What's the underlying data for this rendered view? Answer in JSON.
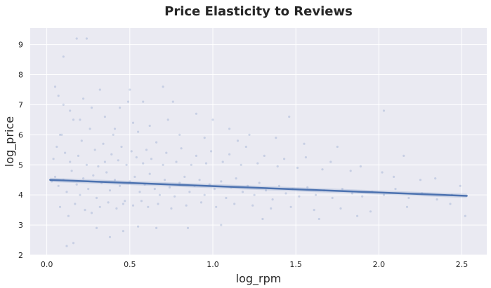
{
  "chart_data": {
    "type": "scatter",
    "title": "Price Elasticity to Reviews",
    "xlabel": "log_rpm",
    "ylabel": "log_price",
    "xlim": [
      -0.1,
      2.65
    ],
    "ylim": [
      2.0,
      9.55
    ],
    "xticks": [
      0.0,
      0.5,
      1.0,
      1.5,
      2.0,
      2.5
    ],
    "xtick_labels": [
      "0.0",
      "0.5",
      "1.0",
      "1.5",
      "2.0",
      "2.5"
    ],
    "yticks": [
      2,
      3,
      4,
      5,
      6,
      7,
      8,
      9
    ],
    "ytick_labels": [
      "2",
      "3",
      "4",
      "5",
      "6",
      "7",
      "8",
      "9"
    ],
    "grid": true,
    "background": "#eaeaf2",
    "point_color": "#4c72b0",
    "line_color": "#4c72b0",
    "regression_line": {
      "x": [
        0.02,
        2.53
      ],
      "y": [
        4.5,
        3.97
      ]
    },
    "series": [
      {
        "points": [
          [
            0.03,
            4.45
          ],
          [
            0.05,
            4.6
          ],
          [
            0.07,
            4.3
          ],
          [
            0.1,
            4.5
          ],
          [
            0.12,
            4.1
          ],
          [
            0.15,
            4.8
          ],
          [
            0.18,
            4.35
          ],
          [
            0.2,
            4.0
          ],
          [
            0.22,
            4.55
          ],
          [
            0.25,
            4.2
          ],
          [
            0.28,
            4.65
          ],
          [
            0.3,
            3.9
          ],
          [
            0.33,
            4.4
          ],
          [
            0.36,
            4.75
          ],
          [
            0.38,
            4.15
          ],
          [
            0.41,
            4.5
          ],
          [
            0.44,
            4.3
          ],
          [
            0.47,
            3.8
          ],
          [
            0.5,
            4.45
          ],
          [
            0.53,
            4.6
          ],
          [
            0.56,
            4.1
          ],
          [
            0.59,
            4.35
          ],
          [
            0.62,
            4.7
          ],
          [
            0.65,
            4.2
          ],
          [
            0.68,
            4.0
          ],
          [
            0.71,
            4.5
          ],
          [
            0.74,
            4.25
          ],
          [
            0.77,
            3.95
          ],
          [
            0.8,
            4.4
          ],
          [
            0.83,
            4.6
          ],
          [
            0.86,
            4.1
          ],
          [
            0.89,
            4.3
          ],
          [
            0.92,
            4.5
          ],
          [
            0.95,
            4.0
          ],
          [
            0.98,
            4.35
          ],
          [
            1.01,
            4.2
          ],
          [
            1.05,
            4.45
          ],
          [
            1.08,
            3.9
          ],
          [
            1.11,
            4.25
          ],
          [
            1.14,
            4.55
          ],
          [
            1.18,
            4.1
          ],
          [
            1.21,
            4.3
          ],
          [
            1.25,
            4.0
          ],
          [
            1.28,
            4.4
          ],
          [
            1.32,
            4.15
          ],
          [
            1.36,
            3.85
          ],
          [
            1.4,
            4.3
          ],
          [
            1.44,
            4.05
          ],
          [
            1.48,
            4.2
          ],
          [
            1.52,
            3.95
          ],
          [
            1.57,
            4.25
          ],
          [
            1.62,
            4.0
          ],
          [
            1.67,
            4.15
          ],
          [
            1.72,
            3.9
          ],
          [
            1.78,
            4.2
          ],
          [
            1.84,
            4.05
          ],
          [
            1.9,
            3.95
          ],
          [
            1.96,
            4.1
          ],
          [
            2.03,
            4.0
          ],
          [
            2.1,
            4.2
          ],
          [
            2.18,
            3.9
          ],
          [
            2.26,
            4.05
          ],
          [
            2.35,
            3.85
          ],
          [
            2.44,
            4.0
          ],
          [
            2.52,
            3.3
          ],
          [
            0.04,
            5.2
          ],
          [
            0.06,
            5.6
          ],
          [
            0.08,
            3.6
          ],
          [
            0.09,
            6.0
          ],
          [
            0.11,
            5.4
          ],
          [
            0.13,
            3.3
          ],
          [
            0.14,
            5.1
          ],
          [
            0.16,
            6.5
          ],
          [
            0.17,
            3.7
          ],
          [
            0.19,
            5.3
          ],
          [
            0.21,
            5.8
          ],
          [
            0.23,
            3.5
          ],
          [
            0.24,
            5.0
          ],
          [
            0.26,
            6.2
          ],
          [
            0.27,
            3.4
          ],
          [
            0.29,
            5.5
          ],
          [
            0.31,
            4.95
          ],
          [
            0.32,
            3.6
          ],
          [
            0.34,
            5.7
          ],
          [
            0.35,
            5.1
          ],
          [
            0.37,
            3.75
          ],
          [
            0.39,
            5.35
          ],
          [
            0.4,
            6.0
          ],
          [
            0.42,
            3.55
          ],
          [
            0.43,
            5.15
          ],
          [
            0.45,
            5.6
          ],
          [
            0.46,
            3.7
          ],
          [
            0.48,
            5.0
          ],
          [
            0.51,
            5.45
          ],
          [
            0.52,
            3.65
          ],
          [
            0.54,
            5.25
          ],
          [
            0.55,
            6.1
          ],
          [
            0.57,
            3.8
          ],
          [
            0.58,
            5.05
          ],
          [
            0.6,
            5.5
          ],
          [
            0.61,
            3.6
          ],
          [
            0.63,
            5.2
          ],
          [
            0.66,
            5.75
          ],
          [
            0.67,
            3.7
          ],
          [
            0.7,
            5.0
          ],
          [
            0.72,
            5.4
          ],
          [
            0.75,
            3.55
          ],
          [
            0.78,
            5.1
          ],
          [
            0.81,
            5.55
          ],
          [
            0.84,
            3.65
          ],
          [
            0.87,
            5.0
          ],
          [
            0.9,
            5.3
          ],
          [
            0.93,
            3.75
          ],
          [
            0.96,
            5.05
          ],
          [
            0.99,
            5.45
          ],
          [
            1.02,
            3.6
          ],
          [
            1.06,
            5.1
          ],
          [
            1.1,
            5.35
          ],
          [
            1.13,
            3.7
          ],
          [
            1.17,
            5.0
          ],
          [
            1.2,
            5.6
          ],
          [
            1.24,
            3.65
          ],
          [
            1.27,
            5.05
          ],
          [
            1.31,
            5.3
          ],
          [
            1.35,
            3.55
          ],
          [
            1.39,
            4.95
          ],
          [
            1.43,
            5.2
          ],
          [
            1.47,
            3.6
          ],
          [
            1.51,
            4.9
          ],
          [
            1.56,
            5.25
          ],
          [
            1.61,
            3.5
          ],
          [
            1.66,
            4.85
          ],
          [
            1.71,
            5.1
          ],
          [
            1.77,
            3.55
          ],
          [
            1.83,
            4.8
          ],
          [
            1.89,
            4.95
          ],
          [
            1.95,
            3.45
          ],
          [
            2.02,
            4.75
          ],
          [
            2.09,
            4.6
          ],
          [
            2.17,
            3.6
          ],
          [
            2.25,
            4.5
          ],
          [
            2.34,
            4.55
          ],
          [
            2.43,
            3.7
          ],
          [
            2.49,
            4.3
          ],
          [
            0.05,
            7.6
          ],
          [
            0.07,
            7.3
          ],
          [
            0.1,
            7.0
          ],
          [
            0.12,
            2.3
          ],
          [
            0.14,
            6.8
          ],
          [
            0.16,
            2.4
          ],
          [
            0.18,
            9.2
          ],
          [
            0.2,
            6.5
          ],
          [
            0.22,
            7.2
          ],
          [
            0.24,
            9.2
          ],
          [
            0.27,
            6.9
          ],
          [
            0.3,
            2.9
          ],
          [
            0.32,
            7.5
          ],
          [
            0.35,
            6.6
          ],
          [
            0.38,
            2.6
          ],
          [
            0.41,
            6.2
          ],
          [
            0.44,
            6.9
          ],
          [
            0.46,
            2.8
          ],
          [
            0.49,
            7.1
          ],
          [
            0.5,
            7.5
          ],
          [
            0.52,
            6.4
          ],
          [
            0.55,
            2.95
          ],
          [
            0.58,
            7.1
          ],
          [
            0.62,
            6.3
          ],
          [
            0.66,
            2.9
          ],
          [
            0.7,
            7.6
          ],
          [
            0.73,
            6.5
          ],
          [
            0.76,
            7.1
          ],
          [
            0.8,
            6.0
          ],
          [
            0.85,
            2.9
          ],
          [
            0.9,
            6.7
          ],
          [
            0.95,
            5.9
          ],
          [
            1.0,
            6.5
          ],
          [
            1.05,
            3.0
          ],
          [
            1.1,
            6.2
          ],
          [
            1.15,
            5.8
          ],
          [
            1.22,
            6.0
          ],
          [
            1.3,
            3.2
          ],
          [
            1.38,
            5.9
          ],
          [
            1.46,
            6.6
          ],
          [
            1.55,
            5.7
          ],
          [
            1.64,
            3.2
          ],
          [
            1.75,
            5.6
          ],
          [
            1.87,
            3.3
          ],
          [
            2.03,
            6.8
          ],
          [
            2.15,
            5.3
          ],
          [
            0.1,
            8.6
          ],
          [
            0.08,
            6.0
          ]
        ]
      }
    ]
  }
}
